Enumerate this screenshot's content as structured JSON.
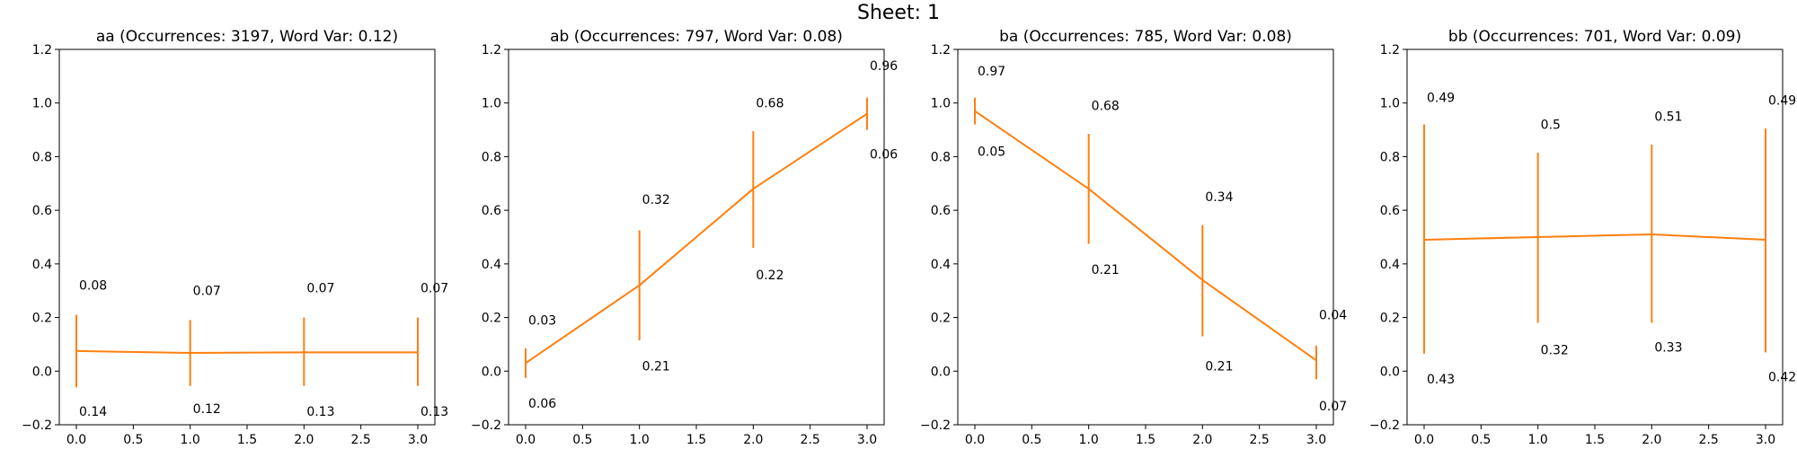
{
  "figure": {
    "title": "Sheet: 1",
    "line_color": "#ff7f0e"
  },
  "chart_data": [
    {
      "type": "line",
      "title": "aa (Occurrences: 3197, Word Var: 0.12)",
      "x": [
        0,
        1,
        2,
        3
      ],
      "y": [
        0.075,
        0.068,
        0.07,
        0.07
      ],
      "err_top": [
        0.21,
        0.19,
        0.2,
        0.2
      ],
      "err_bottom": [
        -0.06,
        -0.055,
        -0.055,
        -0.055
      ],
      "upper_labels": [
        "0.08",
        "0.07",
        "0.07",
        "0.07"
      ],
      "lower_labels": [
        "0.14",
        "0.12",
        "0.13",
        "0.13"
      ],
      "upper_label_y": [
        0.32,
        0.3,
        0.31,
        0.31
      ],
      "lower_label_y": [
        -0.15,
        -0.14,
        -0.15,
        -0.15
      ],
      "xlim": [
        -0.15,
        3.15
      ],
      "ylim": [
        -0.2,
        1.2
      ],
      "xticks": [
        "0.0",
        "0.5",
        "1.0",
        "1.5",
        "2.0",
        "2.5",
        "3.0"
      ],
      "yticks": [
        "−0.2",
        "0.0",
        "0.2",
        "0.4",
        "0.6",
        "0.8",
        "1.0",
        "1.2"
      ]
    },
    {
      "type": "line",
      "title": "ab (Occurrences: 797, Word Var: 0.08)",
      "x": [
        0,
        1,
        2,
        3
      ],
      "y": [
        0.03,
        0.32,
        0.68,
        0.96
      ],
      "err_top": [
        0.085,
        0.525,
        0.895,
        1.02
      ],
      "err_bottom": [
        -0.025,
        0.115,
        0.46,
        0.9
      ],
      "upper_labels": [
        "0.03",
        "0.32",
        "0.68",
        "0.96"
      ],
      "lower_labels": [
        "0.06",
        "0.21",
        "0.22",
        "0.06"
      ],
      "upper_label_y": [
        0.19,
        0.64,
        1.0,
        1.14
      ],
      "lower_label_y": [
        -0.12,
        0.02,
        0.36,
        0.81
      ],
      "xlim": [
        -0.15,
        3.15
      ],
      "ylim": [
        -0.2,
        1.2
      ],
      "xticks": [
        "0.0",
        "0.5",
        "1.0",
        "1.5",
        "2.0",
        "2.5",
        "3.0"
      ],
      "yticks": [
        "−0.2",
        "0.0",
        "0.2",
        "0.4",
        "0.6",
        "0.8",
        "1.0",
        "1.2"
      ]
    },
    {
      "type": "line",
      "title": "ba (Occurrences: 785, Word Var: 0.08)",
      "x": [
        0,
        1,
        2,
        3
      ],
      "y": [
        0.97,
        0.68,
        0.34,
        0.04
      ],
      "err_top": [
        1.02,
        0.885,
        0.545,
        0.095
      ],
      "err_bottom": [
        0.92,
        0.475,
        0.13,
        -0.03
      ],
      "upper_labels": [
        "0.97",
        "0.68",
        "0.34",
        "0.04"
      ],
      "lower_labels": [
        "0.05",
        "0.21",
        "0.21",
        "0.07"
      ],
      "upper_label_y": [
        1.12,
        0.99,
        0.65,
        0.21
      ],
      "lower_label_y": [
        0.82,
        0.38,
        0.02,
        -0.13
      ],
      "xlim": [
        -0.15,
        3.15
      ],
      "ylim": [
        -0.2,
        1.2
      ],
      "xticks": [
        "0.0",
        "0.5",
        "1.0",
        "1.5",
        "2.0",
        "2.5",
        "3.0"
      ],
      "yticks": [
        "−0.2",
        "0.0",
        "0.2",
        "0.4",
        "0.6",
        "0.8",
        "1.0",
        "1.2"
      ]
    },
    {
      "type": "line",
      "title": "bb (Occurrences: 701, Word Var: 0.09)",
      "x": [
        0,
        1,
        2,
        3
      ],
      "y": [
        0.49,
        0.5,
        0.51,
        0.49
      ],
      "err_top": [
        0.92,
        0.815,
        0.845,
        0.905
      ],
      "err_bottom": [
        0.065,
        0.18,
        0.18,
        0.07
      ],
      "upper_labels": [
        "0.49",
        "0.5",
        "0.51",
        "0.49"
      ],
      "lower_labels": [
        "0.43",
        "0.32",
        "0.33",
        "0.42"
      ],
      "upper_label_y": [
        1.02,
        0.92,
        0.95,
        1.01
      ],
      "lower_label_y": [
        -0.03,
        0.08,
        0.09,
        -0.02
      ],
      "xlim": [
        -0.15,
        3.15
      ],
      "ylim": [
        -0.2,
        1.2
      ],
      "xticks": [
        "0.0",
        "0.5",
        "1.0",
        "1.5",
        "2.0",
        "2.5",
        "3.0"
      ],
      "yticks": [
        "−0.2",
        "0.0",
        "0.2",
        "0.4",
        "0.6",
        "0.8",
        "1.0",
        "1.2"
      ]
    }
  ]
}
